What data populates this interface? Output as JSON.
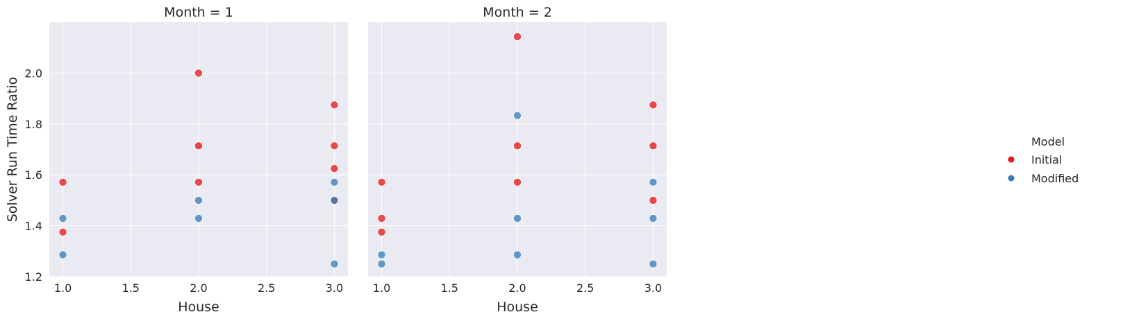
{
  "chart_data": {
    "type": "scatter",
    "facet_label": "Month",
    "xlabel": "House",
    "ylabel": "Solver Run Time Ratio",
    "xlim": [
      0.9,
      3.1
    ],
    "ylim": [
      1.2,
      2.2
    ],
    "xticks": [
      "1.0",
      "1.5",
      "2.0",
      "2.5",
      "3.0"
    ],
    "xtick_values": [
      1.0,
      1.5,
      2.0,
      2.5,
      3.0
    ],
    "yticks": [
      "1.2",
      "1.4",
      "1.6",
      "1.8",
      "2.0"
    ],
    "ytick_values": [
      1.2,
      1.4,
      1.6,
      1.8,
      2.0
    ],
    "grid": true,
    "legend": {
      "title": "Model",
      "placement": "right",
      "entries": [
        {
          "label": "Initial",
          "color": "#e41a1c"
        },
        {
          "label": "Modified",
          "color": "#377eb8"
        }
      ]
    },
    "panels": [
      {
        "title": "Month = 1",
        "series": [
          {
            "name": "Initial",
            "x": [
              1,
              1,
              2,
              2,
              2,
              3,
              3,
              3,
              3
            ],
            "y": [
              1.571,
              1.375,
              2.0,
              1.714,
              1.571,
              1.875,
              1.714,
              1.625,
              1.5
            ]
          },
          {
            "name": "Modified",
            "x": [
              1,
              1,
              2,
              2,
              3,
              3,
              3
            ],
            "y": [
              1.429,
              1.286,
              1.5,
              1.429,
              1.571,
              1.5,
              1.25
            ]
          }
        ]
      },
      {
        "title": "Month = 2",
        "series": [
          {
            "name": "Initial",
            "x": [
              1,
              1,
              1,
              2,
              2,
              2,
              3,
              3,
              3
            ],
            "y": [
              1.571,
              1.429,
              1.375,
              2.143,
              1.714,
              1.571,
              1.875,
              1.714,
              1.5
            ]
          },
          {
            "name": "Modified",
            "x": [
              1,
              1,
              2,
              2,
              2,
              3,
              3,
              3
            ],
            "y": [
              1.286,
              1.25,
              1.833,
              1.429,
              1.286,
              1.571,
              1.429,
              1.25
            ]
          }
        ]
      }
    ]
  }
}
